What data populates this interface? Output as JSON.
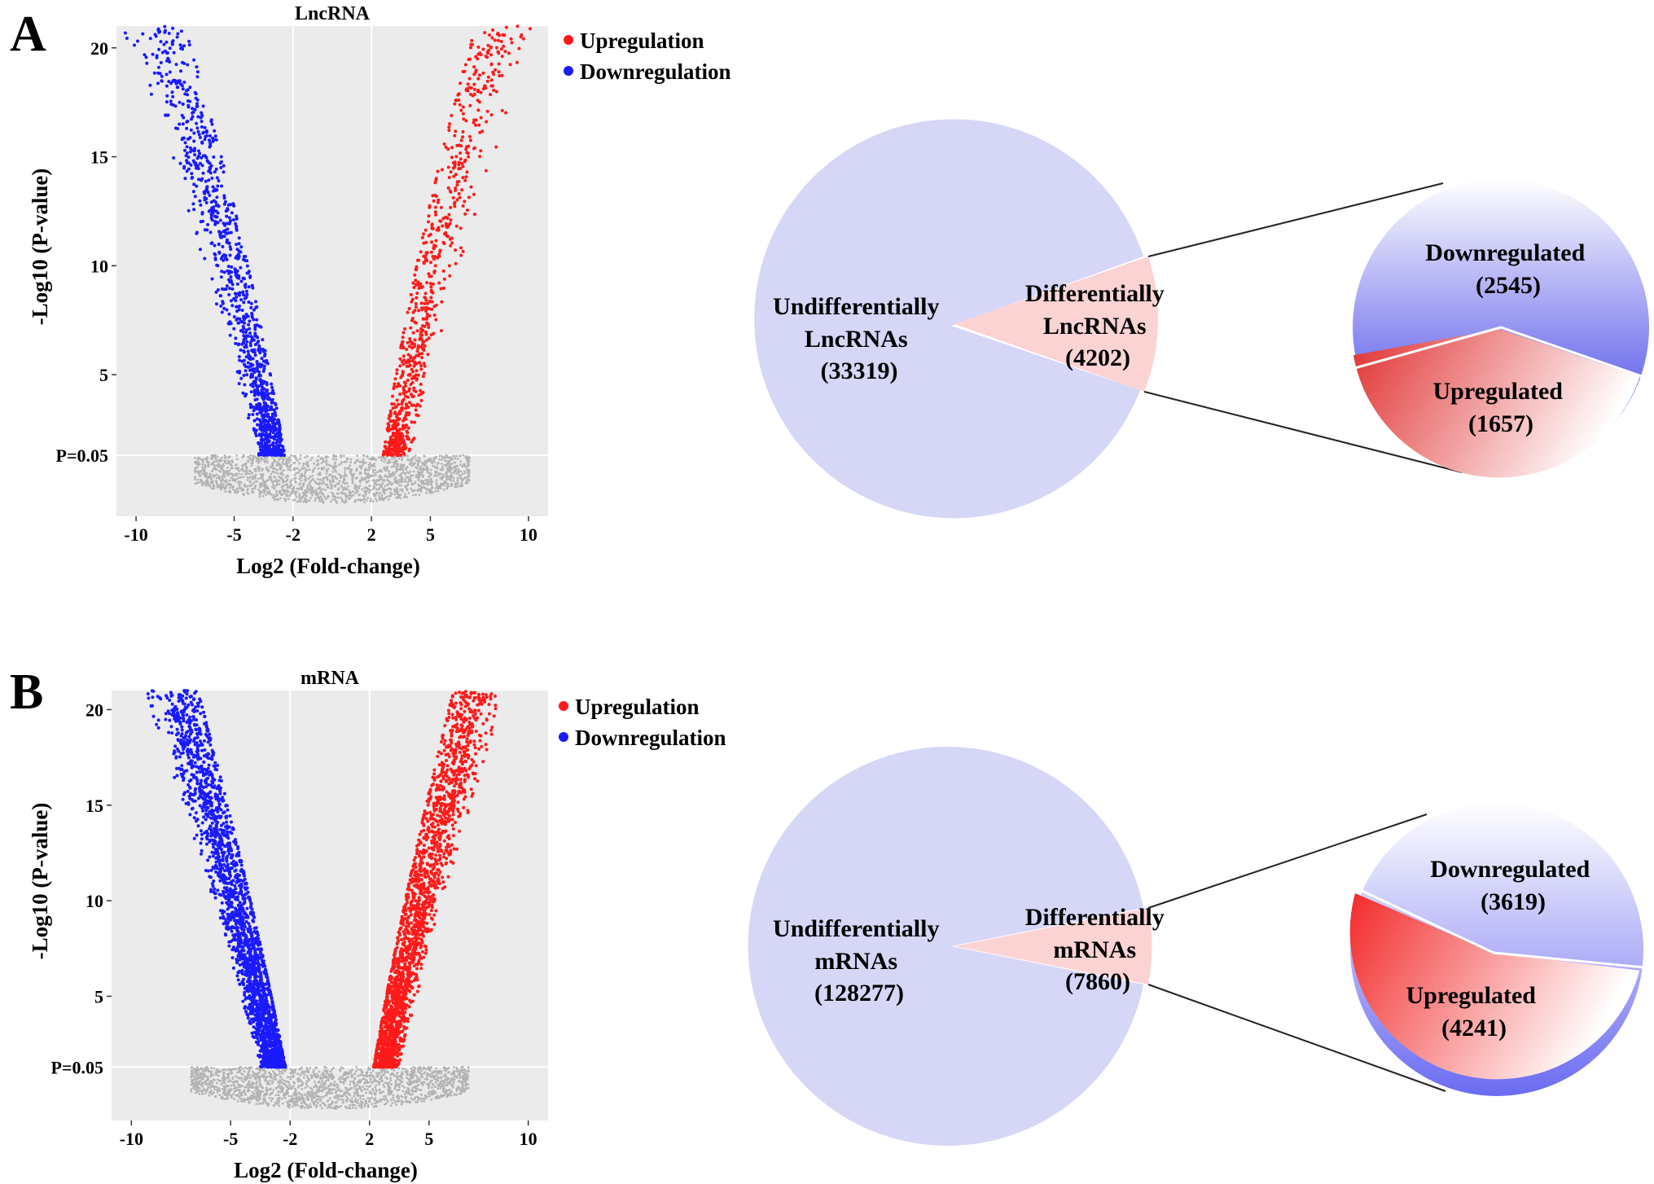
{
  "panels": [
    {
      "letter": "A",
      "volcano": {
        "title": "LncRNA",
        "xlabel": "Log2 (Fold-change)",
        "ylabel": "-Log10 (P-value)",
        "threshold_label": "P=0.05",
        "x_ticks": [
          {
            "v": -10,
            "t": "-10"
          },
          {
            "v": -5,
            "t": "-5"
          },
          {
            "v": -2,
            "t": "-2"
          },
          {
            "v": 2,
            "t": "2"
          },
          {
            "v": 5,
            "t": "5"
          },
          {
            "v": 10,
            "t": "10"
          }
        ],
        "y_ticks": [
          {
            "v": 5,
            "t": "5"
          },
          {
            "v": 10,
            "t": "10"
          },
          {
            "v": 15,
            "t": "15"
          },
          {
            "v": 20,
            "t": "20"
          }
        ],
        "legend": [
          "Upregulation",
          "Downregulation"
        ]
      },
      "pie": {
        "undiff_label": [
          "Undifferentially",
          "LncRNAs",
          "(33319)"
        ],
        "diff_label": [
          "Differentially",
          "LncRNAs",
          "(4202)"
        ],
        "down_label": [
          "Downregulated",
          "(2545)"
        ],
        "up_label": [
          "Upregulated",
          "(1657)"
        ]
      }
    },
    {
      "letter": "B",
      "volcano": {
        "title": "mRNA",
        "xlabel": "Log2 (Fold-change)",
        "ylabel": "-Log10 (P-value)",
        "threshold_label": "P=0.05",
        "x_ticks": [
          {
            "v": -10,
            "t": "-10"
          },
          {
            "v": -5,
            "t": "-5"
          },
          {
            "v": -2,
            "t": "-2"
          },
          {
            "v": 2,
            "t": "2"
          },
          {
            "v": 5,
            "t": "5"
          },
          {
            "v": 10,
            "t": "10"
          }
        ],
        "y_ticks": [
          {
            "v": 5,
            "t": "5"
          },
          {
            "v": 10,
            "t": "10"
          },
          {
            "v": 15,
            "t": "15"
          },
          {
            "v": 20,
            "t": "20"
          }
        ],
        "legend": [
          "Upregulation",
          "Downregulation"
        ]
      },
      "pie": {
        "undiff_label": [
          "Undifferentially",
          "mRNAs",
          "(128277)"
        ],
        "diff_label": [
          "Differentially",
          "mRNAs",
          "(7860)"
        ],
        "down_label": [
          "Downregulated",
          "(3619)"
        ],
        "up_label": [
          "Upregulated",
          "(4241)"
        ]
      }
    }
  ],
  "colors": {
    "up": "#ff1a1a",
    "down": "#1a1aff",
    "nonsig": "#b3b3b3",
    "panel_bg": "#ebebeb",
    "grid": "#ffffff",
    "pie_main": "#d6d6f7",
    "pie_slice": "#fbd3d3"
  },
  "chart_data": [
    {
      "type": "scatter",
      "title": "LncRNA",
      "xlabel": "Log2 (Fold-change)",
      "ylabel": "-Log10 (P-value)",
      "xlim": [
        -11,
        11
      ],
      "ylim": [
        -1.5,
        21
      ],
      "threshold_y": 1.3,
      "threshold_x": [
        -2,
        2
      ],
      "series": [
        {
          "name": "Upregulation",
          "count": 1657,
          "x_range": [
            2.5,
            9.5
          ],
          "y_range": [
            1.3,
            21
          ]
        },
        {
          "name": "Downregulation",
          "count": 2545,
          "x_range": [
            -7.5,
            -2
          ],
          "y_range": [
            1.3,
            21
          ]
        }
      ]
    },
    {
      "type": "pie",
      "slices": [
        {
          "label": "Undifferentially LncRNAs",
          "value": 33319
        },
        {
          "label": "Differentially LncRNAs",
          "value": 4202
        }
      ]
    },
    {
      "type": "pie",
      "slices": [
        {
          "label": "Downregulated",
          "value": 2545
        },
        {
          "label": "Upregulated",
          "value": 1657
        }
      ]
    },
    {
      "type": "scatter",
      "title": "mRNA",
      "xlabel": "Log2 (Fold-change)",
      "ylabel": "-Log10 (P-value)",
      "xlim": [
        -11,
        11
      ],
      "ylim": [
        -1.5,
        21
      ],
      "threshold_y": 1.3,
      "threshold_x": [
        -2,
        2
      ],
      "series": [
        {
          "name": "Upregulation",
          "count": 4241,
          "x_range": [
            2,
            8
          ],
          "y_range": [
            1.3,
            21
          ]
        },
        {
          "name": "Downregulation",
          "count": 3619,
          "x_range": [
            -8,
            -2
          ],
          "y_range": [
            1.3,
            21
          ]
        }
      ]
    },
    {
      "type": "pie",
      "slices": [
        {
          "label": "Undifferentially mRNAs",
          "value": 128277
        },
        {
          "label": "Differentially mRNAs",
          "value": 7860
        }
      ]
    },
    {
      "type": "pie",
      "slices": [
        {
          "label": "Downregulated",
          "value": 3619
        },
        {
          "label": "Upregulated",
          "value": 4241
        }
      ]
    }
  ]
}
